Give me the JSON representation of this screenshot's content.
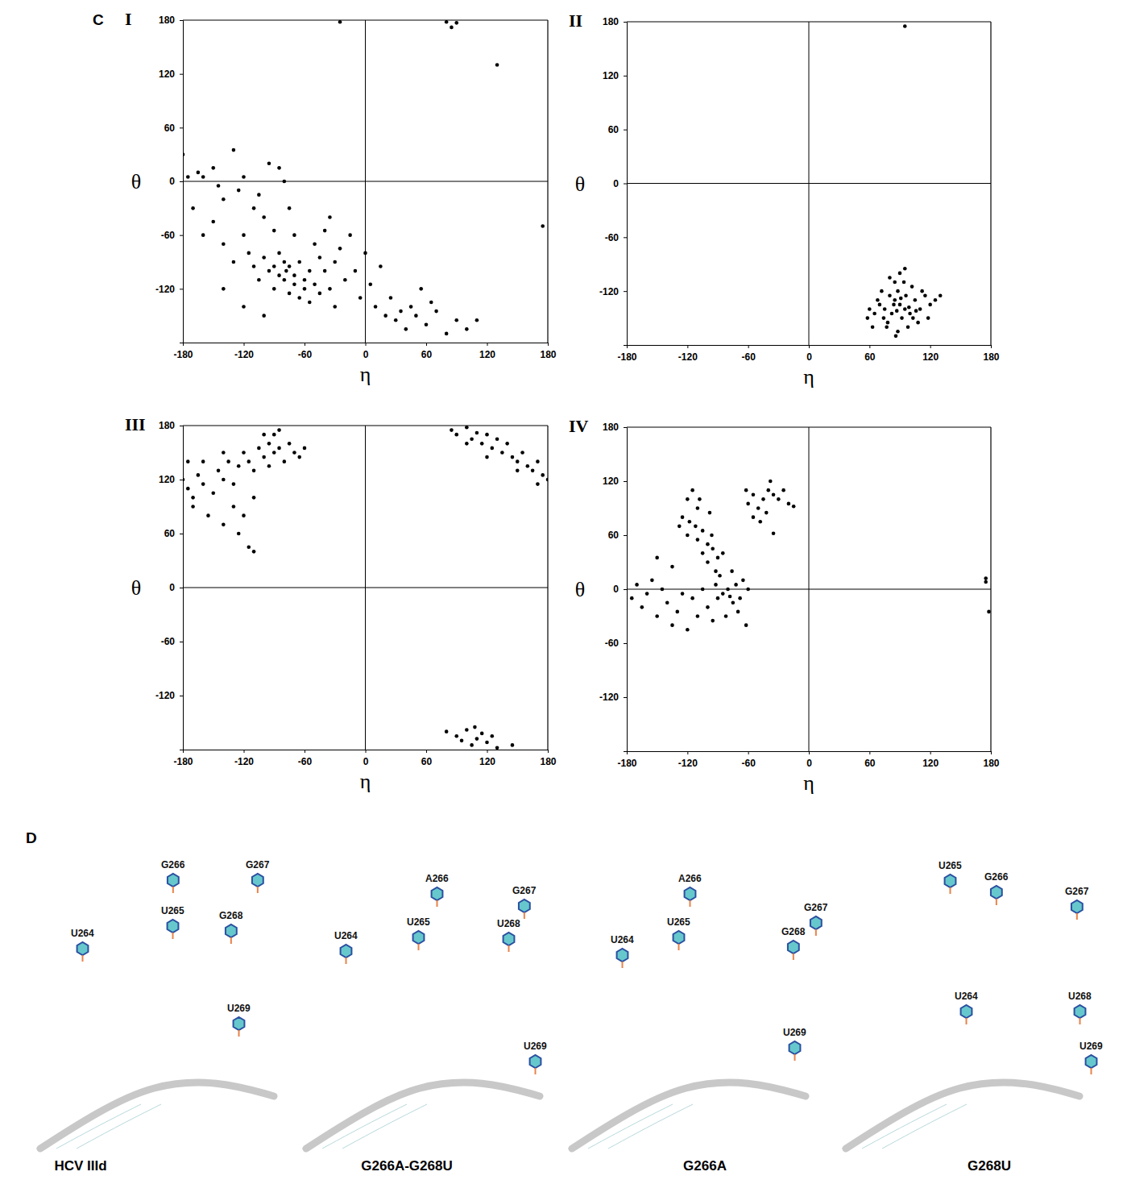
{
  "figure": {
    "panel_letters": [
      "C",
      "D"
    ]
  },
  "chart_data": [
    {
      "type": "scatter",
      "title": "I",
      "x_label": "η",
      "y_label": "θ",
      "xlim": [
        -180,
        180
      ],
      "ylim": [
        -180,
        180
      ],
      "xticks": [
        -180,
        -120,
        -60,
        0,
        60,
        120,
        180
      ],
      "yticks": [
        -120,
        -60,
        0,
        60,
        120,
        180
      ],
      "color": "#000000",
      "marker": "circle",
      "x": [
        -180,
        -175,
        -165,
        -160,
        -150,
        -145,
        -140,
        -130,
        -125,
        -120,
        -110,
        -105,
        -100,
        -95,
        -90,
        -85,
        -80,
        -75,
        -70,
        -160,
        -170,
        -150,
        -140,
        -130,
        -120,
        -115,
        -110,
        -105,
        -100,
        -95,
        -90,
        -90,
        -85,
        -85,
        -80,
        -80,
        -78,
        -75,
        -75,
        -70,
        -70,
        -65,
        -65,
        -60,
        -60,
        -55,
        -55,
        -50,
        -50,
        -45,
        -45,
        -40,
        -40,
        -35,
        -35,
        -30,
        -30,
        -25,
        -20,
        -15,
        -10,
        -5,
        0,
        5,
        10,
        15,
        20,
        25,
        30,
        35,
        40,
        45,
        50,
        55,
        60,
        65,
        70,
        80,
        90,
        100,
        110,
        -140,
        -120,
        -100,
        -25,
        80,
        85,
        90,
        130,
        175
      ],
      "values": [
        30,
        5,
        10,
        5,
        15,
        -5,
        -20,
        35,
        -10,
        5,
        -30,
        -15,
        -40,
        20,
        -55,
        15,
        0,
        -30,
        -60,
        -60,
        -30,
        -45,
        -70,
        -90,
        -60,
        -80,
        -95,
        -110,
        -85,
        -100,
        -120,
        -95,
        -105,
        -80,
        -110,
        -90,
        -100,
        -125,
        -95,
        -105,
        -115,
        -90,
        -130,
        -110,
        -120,
        -100,
        -135,
        -115,
        -70,
        -125,
        -85,
        -100,
        -55,
        -120,
        -40,
        -90,
        -140,
        -75,
        -110,
        -60,
        -100,
        -130,
        -80,
        -115,
        -140,
        -95,
        -150,
        -130,
        -155,
        -145,
        -165,
        -140,
        -150,
        -120,
        -160,
        -135,
        -145,
        -170,
        -155,
        -165,
        -155,
        -120,
        -140,
        -150,
        178,
        178,
        172,
        177,
        130,
        -50
      ]
    },
    {
      "type": "scatter",
      "title": "II",
      "x_label": "η",
      "y_label": "θ",
      "xlim": [
        -180,
        180
      ],
      "ylim": [
        -180,
        180
      ],
      "xticks": [
        -180,
        -120,
        -60,
        0,
        60,
        120,
        180
      ],
      "yticks": [
        -120,
        -60,
        0,
        60,
        120,
        180
      ],
      "color": "#000000",
      "marker": "circle",
      "x": [
        90,
        85,
        95,
        80,
        100,
        75,
        105,
        70,
        110,
        88,
        92,
        65,
        115,
        78,
        102,
        85,
        98,
        60,
        120,
        72,
        108,
        82,
        96,
        90,
        88,
        68,
        112,
        77,
        103,
        94,
        125,
        58,
        84,
        99,
        91,
        87,
        80,
        118,
        74,
        106,
        130,
        63,
        86,
        95,
        95
      ],
      "values": [
        -135,
        -130,
        -140,
        -125,
        -145,
        -140,
        -130,
        -135,
        -140,
        -120,
        -150,
        -145,
        -125,
        -155,
        -115,
        -110,
        -160,
        -140,
        -135,
        -120,
        -155,
        -145,
        -125,
        -100,
        -165,
        -130,
        -120,
        -160,
        -150,
        -110,
        -130,
        -150,
        -135,
        -138,
        -128,
        -142,
        -105,
        -150,
        -150,
        -142,
        -125,
        -160,
        -170,
        -95,
        175
      ]
    },
    {
      "type": "scatter",
      "title": "III",
      "x_label": "η",
      "y_label": "θ",
      "xlim": [
        -180,
        180
      ],
      "ylim": [
        -180,
        180
      ],
      "xticks": [
        -180,
        -120,
        -60,
        0,
        60,
        120,
        180
      ],
      "yticks": [
        -120,
        -60,
        0,
        60,
        120,
        180
      ],
      "color": "#000000",
      "marker": "circle",
      "x": [
        -180,
        -175,
        -170,
        -165,
        -160,
        -170,
        -160,
        -150,
        -145,
        -140,
        -135,
        -130,
        -125,
        -120,
        -120,
        -115,
        -110,
        -125,
        -115,
        -110,
        -105,
        -100,
        -95,
        -90,
        -85,
        -80,
        -90,
        -75,
        -70,
        -65,
        -60,
        -100,
        -110,
        -130,
        -155,
        -175,
        -140,
        -95,
        -85,
        -140,
        85,
        90,
        100,
        105,
        110,
        115,
        120,
        125,
        130,
        135,
        140,
        145,
        150,
        155,
        160,
        165,
        170,
        175,
        180,
        120,
        100,
        150,
        170,
        80,
        90,
        95,
        100,
        105,
        110,
        115,
        120,
        125,
        130,
        108,
        145
      ],
      "values": [
        120,
        110,
        100,
        125,
        115,
        90,
        140,
        105,
        130,
        120,
        140,
        115,
        135,
        150,
        80,
        140,
        130,
        60,
        45,
        40,
        155,
        145,
        160,
        150,
        155,
        140,
        170,
        160,
        150,
        145,
        155,
        170,
        100,
        90,
        80,
        140,
        150,
        135,
        175,
        70,
        175,
        170,
        178,
        165,
        172,
        160,
        170,
        155,
        165,
        150,
        160,
        145,
        140,
        150,
        135,
        130,
        140,
        125,
        120,
        145,
        160,
        130,
        115,
        -160,
        -165,
        -170,
        -158,
        -175,
        -168,
        -162,
        -172,
        -165,
        -178,
        -155,
        -175
      ]
    },
    {
      "type": "scatter",
      "title": "IV",
      "x_label": "η",
      "y_label": "θ",
      "xlim": [
        -180,
        180
      ],
      "ylim": [
        -180,
        180
      ],
      "xticks": [
        -180,
        -120,
        -60,
        0,
        60,
        120,
        180
      ],
      "yticks": [
        -120,
        -60,
        0,
        60,
        120,
        180
      ],
      "color": "#000000",
      "marker": "circle",
      "x": [
        -175,
        -170,
        -165,
        -160,
        -155,
        -150,
        -145,
        -140,
        -135,
        -130,
        -125,
        -120,
        -115,
        -110,
        -105,
        -100,
        -95,
        -90,
        -85,
        -80,
        -78,
        -75,
        -72,
        -70,
        -68,
        -65,
        -62,
        -60,
        -88,
        -82,
        -92,
        -76,
        -150,
        -135,
        -120,
        -115,
        -110,
        -125,
        -118,
        -112,
        -105,
        -120,
        -110,
        -100,
        -105,
        -95,
        -90,
        -100,
        -92,
        -85,
        -98,
        -108,
        -128,
        -96,
        -60,
        -55,
        -50,
        -45,
        -40,
        -38,
        -35,
        -30,
        -25,
        -20,
        -15,
        -42,
        -55,
        -48,
        -35,
        -62,
        175,
        175,
        178
      ],
      "values": [
        -10,
        5,
        -20,
        -5,
        10,
        -30,
        0,
        -15,
        -40,
        -25,
        -5,
        -45,
        -10,
        -30,
        0,
        -20,
        -35,
        -10,
        -5,
        0,
        -8,
        -15,
        5,
        -25,
        -10,
        10,
        -40,
        0,
        15,
        -30,
        5,
        20,
        35,
        25,
        100,
        110,
        90,
        80,
        75,
        70,
        65,
        60,
        55,
        50,
        40,
        45,
        35,
        30,
        20,
        40,
        85,
        100,
        70,
        60,
        95,
        105,
        90,
        100,
        110,
        120,
        105,
        100,
        110,
        95,
        92,
        85,
        80,
        75,
        62,
        110,
        12,
        8,
        -25
      ]
    }
  ],
  "structures": [
    {
      "caption": "HCV IIId",
      "labels": [
        "G266",
        "G267",
        "U265",
        "G268",
        "U264",
        "U269"
      ]
    },
    {
      "caption": "G266A-G268U",
      "labels": [
        "A266",
        "G267",
        "U265",
        "U264",
        "U268",
        "U269"
      ]
    },
    {
      "caption": "G266A",
      "labels": [
        "A266",
        "G267",
        "U265",
        "U264",
        "G268",
        "U269"
      ]
    },
    {
      "caption": "G268U",
      "labels": [
        "U265",
        "G266",
        "G267",
        "U264",
        "U268",
        "U269"
      ]
    }
  ]
}
